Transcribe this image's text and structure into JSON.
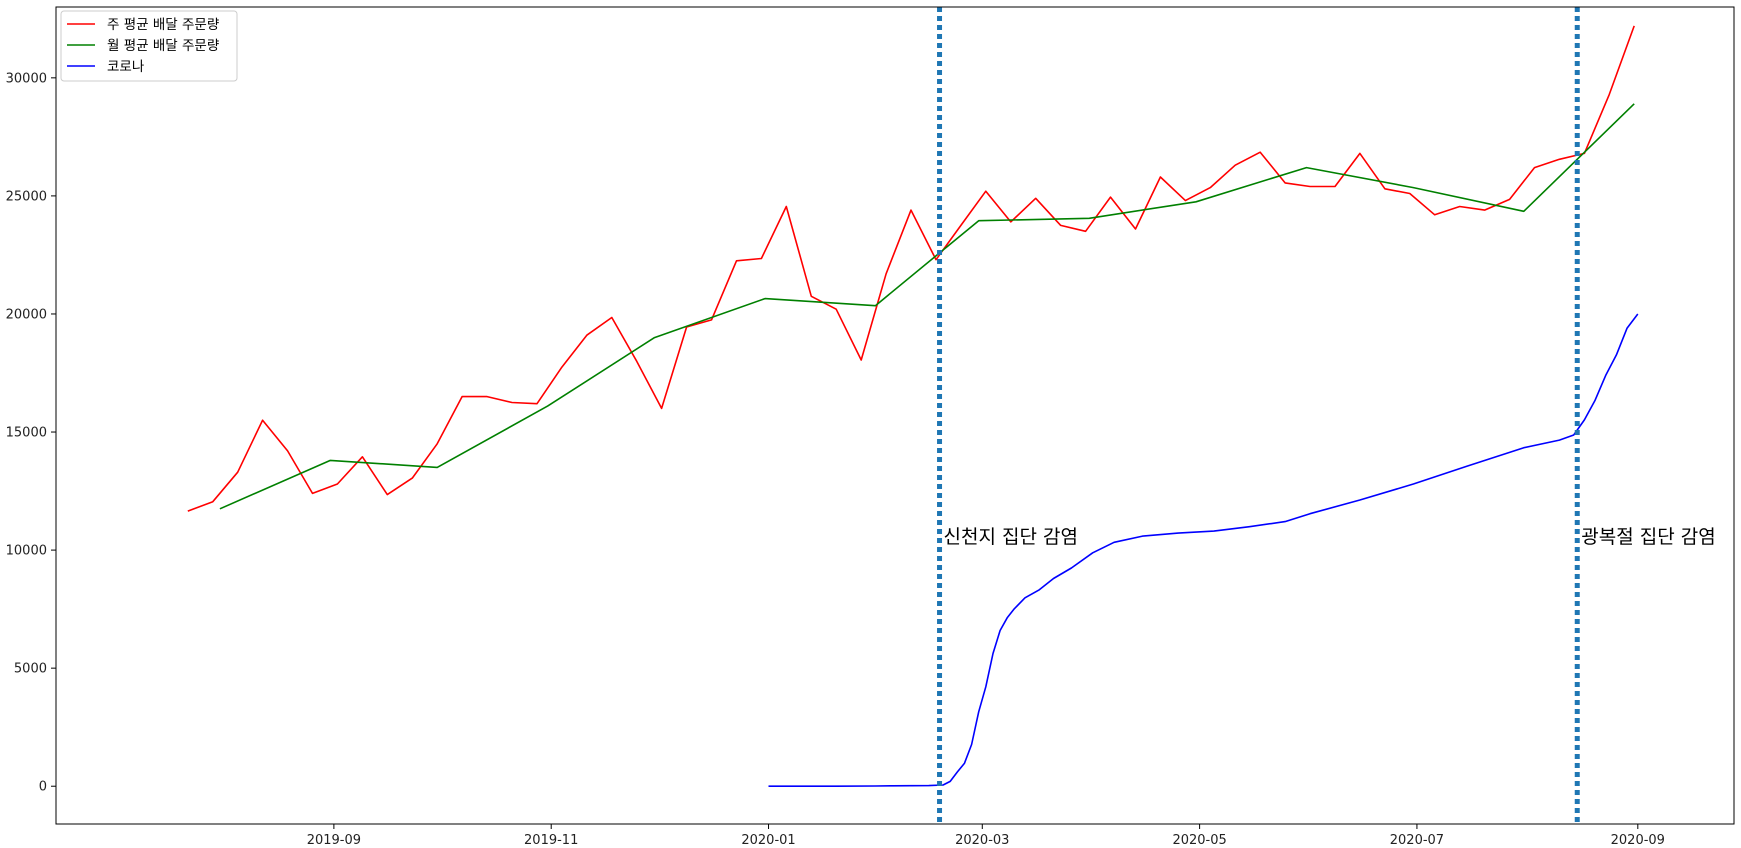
{
  "chart_data": {
    "type": "line",
    "title": "",
    "xlabel": "",
    "ylabel": "",
    "x_axis": {
      "type": "date",
      "range": [
        "2019-06-15",
        "2020-09-28"
      ],
      "ticks": [
        {
          "date": "2019-09-01",
          "label": "2019-09"
        },
        {
          "date": "2019-11-01",
          "label": "2019-11"
        },
        {
          "date": "2020-01-01",
          "label": "2020-01"
        },
        {
          "date": "2020-03-01",
          "label": "2020-03"
        },
        {
          "date": "2020-05-01",
          "label": "2020-05"
        },
        {
          "date": "2020-07-01",
          "label": "2020-07"
        },
        {
          "date": "2020-09-01",
          "label": "2020-09"
        }
      ]
    },
    "y_axis": {
      "range": [
        -1600,
        33000
      ],
      "ticks": [
        0,
        5000,
        10000,
        15000,
        20000,
        25000,
        30000
      ]
    },
    "grid": false,
    "legend": {
      "placement": "top-left"
    },
    "series": [
      {
        "name": "주 평균 배달 주문량",
        "color": "#ff0000",
        "points": [
          [
            "2019-07-22",
            11650
          ],
          [
            "2019-07-29",
            12050
          ],
          [
            "2019-08-05",
            13300
          ],
          [
            "2019-08-12",
            15500
          ],
          [
            "2019-08-19",
            14200
          ],
          [
            "2019-08-26",
            12400
          ],
          [
            "2019-09-02",
            12800
          ],
          [
            "2019-09-09",
            13950
          ],
          [
            "2019-09-16",
            12350
          ],
          [
            "2019-09-23",
            13050
          ],
          [
            "2019-09-30",
            14500
          ],
          [
            "2019-10-07",
            16500
          ],
          [
            "2019-10-14",
            16500
          ],
          [
            "2019-10-21",
            16250
          ],
          [
            "2019-10-28",
            16200
          ],
          [
            "2019-11-04",
            17750
          ],
          [
            "2019-11-11",
            19100
          ],
          [
            "2019-11-18",
            19850
          ],
          [
            "2019-11-25",
            18000
          ],
          [
            "2019-12-02",
            16000
          ],
          [
            "2019-12-09",
            19450
          ],
          [
            "2019-12-16",
            19750
          ],
          [
            "2019-12-23",
            22250
          ],
          [
            "2019-12-30",
            22350
          ],
          [
            "2020-01-06",
            24550
          ],
          [
            "2020-01-13",
            20750
          ],
          [
            "2020-01-20",
            20200
          ],
          [
            "2020-01-27",
            18050
          ],
          [
            "2020-02-03",
            21700
          ],
          [
            "2020-02-10",
            24400
          ],
          [
            "2020-02-17",
            22300
          ],
          [
            "2020-02-24",
            23750
          ],
          [
            "2020-03-02",
            25200
          ],
          [
            "2020-03-09",
            23900
          ],
          [
            "2020-03-16",
            24900
          ],
          [
            "2020-03-23",
            23750
          ],
          [
            "2020-03-30",
            23500
          ],
          [
            "2020-04-06",
            24950
          ],
          [
            "2020-04-13",
            23600
          ],
          [
            "2020-04-20",
            25800
          ],
          [
            "2020-04-27",
            24800
          ],
          [
            "2020-05-04",
            25350
          ],
          [
            "2020-05-11",
            26300
          ],
          [
            "2020-05-18",
            26850
          ],
          [
            "2020-05-25",
            25550
          ],
          [
            "2020-06-01",
            25400
          ],
          [
            "2020-06-08",
            25400
          ],
          [
            "2020-06-15",
            26800
          ],
          [
            "2020-06-22",
            25300
          ],
          [
            "2020-06-29",
            25100
          ],
          [
            "2020-07-06",
            24200
          ],
          [
            "2020-07-13",
            24550
          ],
          [
            "2020-07-20",
            24400
          ],
          [
            "2020-07-27",
            24850
          ],
          [
            "2020-08-03",
            26200
          ],
          [
            "2020-08-10",
            26550
          ],
          [
            "2020-08-17",
            26800
          ],
          [
            "2020-08-24",
            29300
          ],
          [
            "2020-08-31",
            32200
          ]
        ]
      },
      {
        "name": "월 평균 배달 주문량",
        "color": "#008000",
        "points": [
          [
            "2019-07-31",
            11750
          ],
          [
            "2019-08-31",
            13800
          ],
          [
            "2019-09-30",
            13500
          ],
          [
            "2019-10-31",
            16100
          ],
          [
            "2019-11-30",
            19000
          ],
          [
            "2019-12-31",
            20650
          ],
          [
            "2020-01-31",
            20350
          ],
          [
            "2020-02-29",
            23950
          ],
          [
            "2020-03-31",
            24050
          ],
          [
            "2020-04-30",
            24750
          ],
          [
            "2020-05-31",
            26200
          ],
          [
            "2020-06-30",
            25350
          ],
          [
            "2020-07-31",
            24350
          ],
          [
            "2020-08-31",
            28900
          ]
        ]
      },
      {
        "name": "코로나",
        "color": "#0000ff",
        "points": [
          [
            "2020-01-01",
            0
          ],
          [
            "2020-01-20",
            1
          ],
          [
            "2020-01-31",
            11
          ],
          [
            "2020-02-05",
            19
          ],
          [
            "2020-02-15",
            28
          ],
          [
            "2020-02-19",
            51
          ],
          [
            "2020-02-21",
            204
          ],
          [
            "2020-02-23",
            602
          ],
          [
            "2020-02-25",
            977
          ],
          [
            "2020-02-27",
            1766
          ],
          [
            "2020-02-29",
            3150
          ],
          [
            "2020-03-02",
            4212
          ],
          [
            "2020-03-04",
            5621
          ],
          [
            "2020-03-06",
            6593
          ],
          [
            "2020-03-08",
            7134
          ],
          [
            "2020-03-10",
            7513
          ],
          [
            "2020-03-13",
            7979
          ],
          [
            "2020-03-17",
            8320
          ],
          [
            "2020-03-21",
            8799
          ],
          [
            "2020-03-26",
            9241
          ],
          [
            "2020-04-01",
            9887
          ],
          [
            "2020-04-07",
            10331
          ],
          [
            "2020-04-15",
            10591
          ],
          [
            "2020-04-25",
            10718
          ],
          [
            "2020-05-05",
            10806
          ],
          [
            "2020-05-15",
            10991
          ],
          [
            "2020-05-25",
            11206
          ],
          [
            "2020-06-01",
            11541
          ],
          [
            "2020-06-15",
            12121
          ],
          [
            "2020-06-30",
            12800
          ],
          [
            "2020-07-15",
            13551
          ],
          [
            "2020-07-31",
            14336
          ],
          [
            "2020-08-10",
            14660
          ],
          [
            "2020-08-14",
            14873
          ],
          [
            "2020-08-17",
            15515
          ],
          [
            "2020-08-20",
            16346
          ],
          [
            "2020-08-23",
            17399
          ],
          [
            "2020-08-26",
            18265
          ],
          [
            "2020-08-29",
            19400
          ],
          [
            "2020-09-01",
            20000
          ]
        ]
      }
    ],
    "reference_lines": [
      {
        "date": "2020-02-18",
        "label": "신천지 집단 감염",
        "label_y": 10300,
        "color": "#1f77b4",
        "style": "dotted"
      },
      {
        "date": "2020-08-15",
        "label": "광복절 집단 감염",
        "label_y": 10300,
        "color": "#1f77b4",
        "style": "dotted"
      }
    ]
  }
}
